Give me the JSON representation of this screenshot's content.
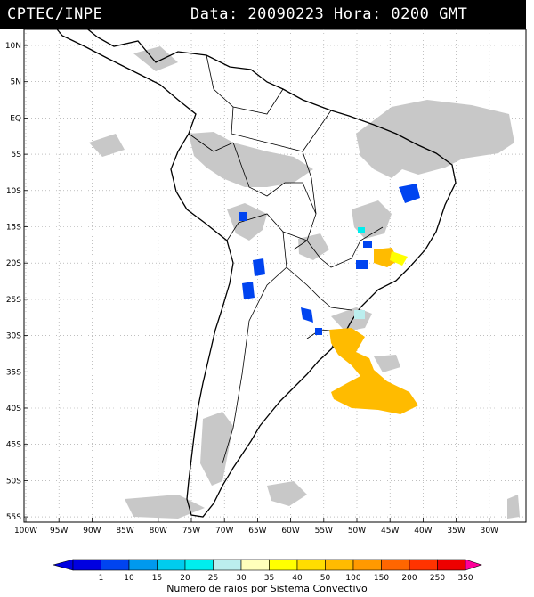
{
  "header": {
    "source": "CPTEC/INPE",
    "datetime": "Data: 20090223 Hora: 0200 GMT"
  },
  "axes": {
    "lat_labels": [
      "10N",
      "5N",
      "EQ",
      "5S",
      "10S",
      "15S",
      "20S",
      "25S",
      "30S",
      "35S",
      "40S",
      "45S",
      "50S",
      "55S"
    ],
    "lon_labels": [
      "100W",
      "95W",
      "90W",
      "85W",
      "80W",
      "75W",
      "70W",
      "65W",
      "60W",
      "55W",
      "50W",
      "45W",
      "40W",
      "35W",
      "30W"
    ]
  },
  "legend": {
    "caption": "Numero de raios por Sistema Convectivo",
    "bins": [
      {
        "label": "1",
        "color": "#0000e0"
      },
      {
        "label": "10",
        "color": "#0044f0"
      },
      {
        "label": "15",
        "color": "#0099ee"
      },
      {
        "label": "20",
        "color": "#00ccee"
      },
      {
        "label": "25",
        "color": "#00eeee"
      },
      {
        "label": "30",
        "color": "#bbeeee"
      },
      {
        "label": "35",
        "color": "#ffffbb"
      },
      {
        "label": "40",
        "color": "#ffff00"
      },
      {
        "label": "50",
        "color": "#ffdd00"
      },
      {
        "label": "100",
        "color": "#ffbb00"
      },
      {
        "label": "150",
        "color": "#ff9900"
      },
      {
        "label": "200",
        "color": "#ff6600"
      },
      {
        "label": "250",
        "color": "#ff3300"
      },
      {
        "label": "350",
        "color": "#ee0000"
      }
    ],
    "end_color": "#ff0099"
  },
  "colors": {
    "cloud": "#c8c8c8",
    "cloud_dark": "#aaaaaa",
    "grid": "#999999"
  }
}
